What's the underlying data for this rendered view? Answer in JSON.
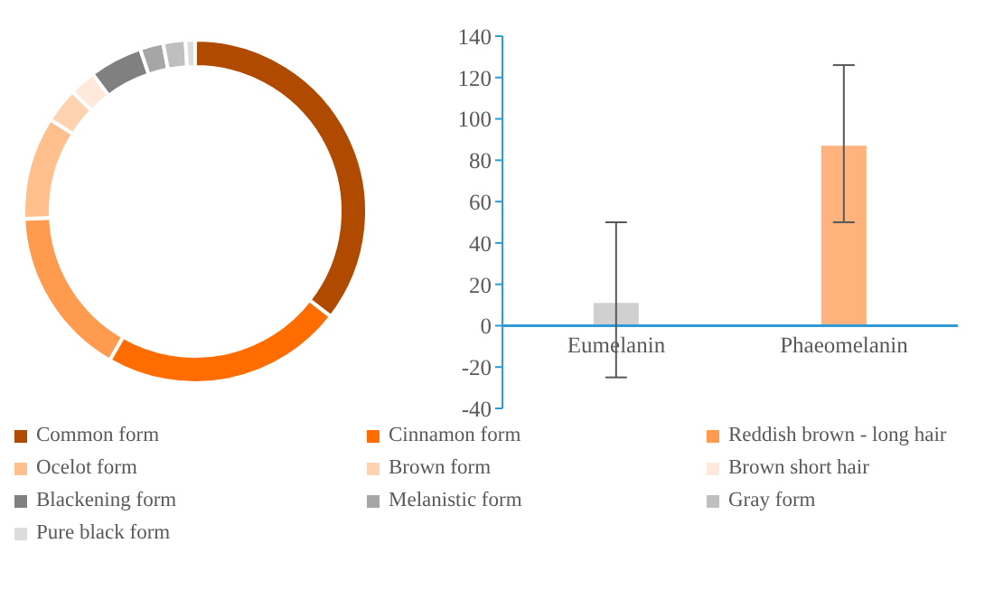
{
  "chart_data": [
    {
      "type": "donut",
      "categories": [
        "Common form",
        "Cinnamon form",
        "Reddish brown - long hair",
        "Ocelot form",
        "Brown form",
        "Brown short hair",
        "Blackening form",
        "Melanistic form",
        "Gray form",
        "Pure black form"
      ],
      "values": [
        35.5,
        22.8,
        16,
        9.7,
        3.3,
        2.5,
        5,
        2.2,
        2.1,
        0.9
      ],
      "colors": [
        "#b04a00",
        "#ff6d00",
        "#ff9b4f",
        "#ffc08e",
        "#ffd3b0",
        "#ffe9da",
        "#808080",
        "#a6a6a6",
        "#bfbfbf",
        "#dcdcdc"
      ],
      "legend": "bottom"
    },
    {
      "type": "bar",
      "categories": [
        "Eumelanin",
        "Phaeomelanin"
      ],
      "values": [
        11,
        87
      ],
      "colors": [
        "#d0d0d0",
        "#ffb27c"
      ],
      "errors": [
        [
          -25,
          50
        ],
        [
          50,
          126
        ]
      ],
      "ylim": [
        -40,
        140
      ],
      "yticks": [
        -40,
        -20,
        0,
        20,
        40,
        60,
        80,
        100,
        120,
        140
      ]
    }
  ]
}
